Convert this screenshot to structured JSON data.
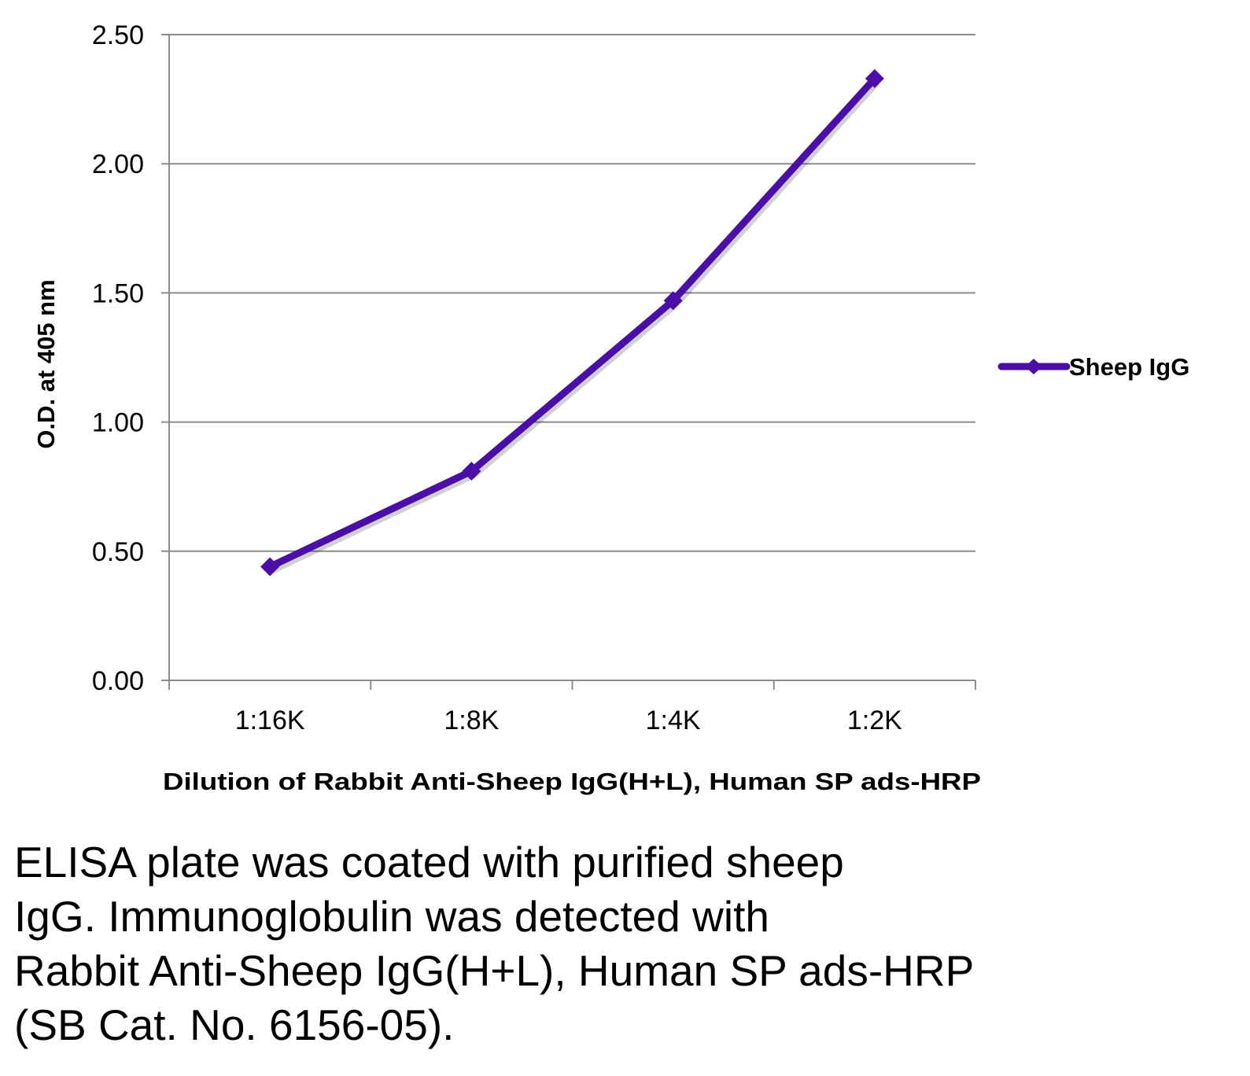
{
  "colors": {
    "series": "#4b0fa8",
    "grid": "#8c8c8c",
    "axis": "#8c8c8c"
  },
  "chart_data": {
    "type": "line",
    "categories": [
      "1:16K",
      "1:8K",
      "1:4K",
      "1:2K"
    ],
    "series": [
      {
        "name": "Sheep IgG",
        "values": [
          0.44,
          0.81,
          1.47,
          2.33
        ],
        "marker": "diamond"
      }
    ],
    "xlabel": "Dilution of Rabbit Anti-Sheep IgG(H+L), Human SP ads-HRP",
    "ylabel": "O.D. at 405 nm",
    "ylim": [
      0,
      2.5
    ],
    "yticks": [
      "0.00",
      "0.50",
      "1.00",
      "1.50",
      "2.00",
      "2.50"
    ],
    "grid": "horizontal",
    "legend": "right"
  },
  "caption": {
    "lines": [
      "ELISA plate was coated with purified sheep",
      "IgG.  Immunoglobulin was detected with",
      "Rabbit Anti-Sheep IgG(H+L), Human SP ads-HRP",
      "(SB Cat. No. 6156-05)."
    ]
  }
}
